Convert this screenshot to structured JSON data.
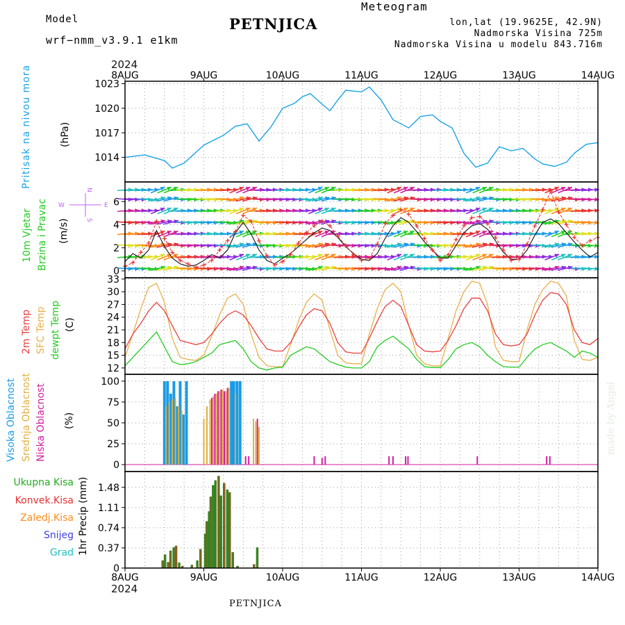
{
  "header": {
    "model_label": "Model",
    "model_name": "wrf−nmm_v3.9.1  e1km",
    "station": "PETNJICA",
    "meteogram": "Meteogram",
    "lonlat": "lon,lat (19.9625E, 42.9N)",
    "elevation": "Nadmorska Visina 725m",
    "model_elevation": "Nadmorska Visina u modelu 843.716m",
    "year": "2024",
    "watermark": "made by Angel"
  },
  "colors": {
    "pressure": "#1aa3e6",
    "temp2m": "#e84040",
    "sfc": "#e6b04a",
    "dew": "#22cc22",
    "high_cloud": "#1a9be6",
    "mid_cloud": "#e0b040",
    "low_cloud": "#d01e9c",
    "precip_total": "#228b22",
    "precip_conv": "#e83030",
    "precip_frz": "#ff8c1a",
    "snow": "#4040e0",
    "grad": "#20c0c0",
    "wind_label": "#22cc22",
    "compass": "#c060f0",
    "header": "#b050d0",
    "meteogram": "#e6b04a"
  },
  "chart_data": [
    {
      "type": "line",
      "title": "Pritisak na nivou mora",
      "ylabel": "(hPa)",
      "x_ticks": [
        "8AUG",
        "9AUG",
        "10AUG",
        "11AUG",
        "12AUG",
        "13AUG",
        "14AUG"
      ],
      "ylim": [
        1011,
        1023.3
      ],
      "y_ticks": [
        1014,
        1017,
        1020,
        1023
      ],
      "x_days": [
        0,
        0.25,
        0.5,
        0.6,
        0.75,
        1,
        1.25,
        1.4,
        1.55,
        1.7,
        1.85,
        2,
        2.15,
        2.25,
        2.35,
        2.5,
        2.6,
        2.7,
        2.8,
        3,
        3.1,
        3.25,
        3.4,
        3.6,
        3.75,
        3.9,
        4,
        4.15,
        4.3,
        4.45,
        4.6,
        4.75,
        4.9,
        5.05,
        5.2,
        5.3,
        5.45,
        5.6,
        5.7,
        5.85,
        6
      ],
      "series": [
        {
          "values": [
            1014,
            1014.3,
            1013.6,
            1012.7,
            1013.3,
            1015.5,
            1016.7,
            1017.8,
            1018.1,
            1016,
            1017.7,
            1020,
            1020.6,
            1021.4,
            1021.8,
            1020.5,
            1019.7,
            1021,
            1022.2,
            1022,
            1022.6,
            1021,
            1018.6,
            1017.6,
            1019,
            1019.2,
            1018.4,
            1017.6,
            1014.5,
            1012.8,
            1013.3,
            1015.3,
            1014.8,
            1015.1,
            1013.8,
            1013.2,
            1012.9,
            1013.4,
            1014.5,
            1015.6,
            1015.8
          ]
        }
      ]
    },
    {
      "type": "line",
      "title": "10m Vjetar Brzina i Pravac",
      "ylabel": "(m/s)",
      "ylim": [
        -0.6,
        7.7
      ],
      "y_ticks": [
        0,
        2,
        4,
        6
      ],
      "compass": {
        "north": "N",
        "south": "S",
        "east": "E",
        "west": "W"
      },
      "x_days": [
        0,
        0.1,
        0.2,
        0.3,
        0.4,
        0.5,
        0.6,
        0.7,
        0.8,
        0.9,
        1,
        1.1,
        1.2,
        1.3,
        1.4,
        1.5,
        1.6,
        1.7,
        1.8,
        1.9,
        2,
        2.1,
        2.2,
        2.3,
        2.4,
        2.5,
        2.6,
        2.7,
        2.8,
        2.9,
        3,
        3.1,
        3.2,
        3.3,
        3.4,
        3.5,
        3.6,
        3.7,
        3.8,
        3.9,
        4,
        4.1,
        4.2,
        4.3,
        4.4,
        4.5,
        4.6,
        4.7,
        4.8,
        4.9,
        5,
        5.1,
        5.2,
        5.3,
        5.4,
        5.5,
        5.6,
        5.7,
        5.8,
        5.9,
        6
      ],
      "series": [
        {
          "values": [
            0.8,
            1.5,
            1.1,
            1.8,
            3.5,
            2.1,
            1.1,
            0.6,
            0.4,
            0.5,
            0.9,
            1.4,
            1.1,
            1.8,
            3.3,
            4.2,
            3.2,
            1.8,
            0.9,
            0.6,
            1.1,
            1.5,
            2.1,
            2.7,
            3.3,
            3.7,
            3.5,
            2.9,
            2.1,
            1.5,
            1.0,
            0.9,
            1.5,
            2.8,
            3.9,
            4.6,
            4.2,
            3.4,
            2.5,
            1.8,
            1.1,
            1.1,
            2.2,
            3.3,
            3.9,
            4.1,
            3.6,
            2.6,
            1.6,
            1.0,
            1.0,
            1.8,
            3.1,
            4.2,
            4.5,
            4.1,
            3.3,
            2.5,
            1.8,
            1.2,
            1.6
          ]
        },
        {
          "values": [
            0.4,
            0.7,
            1.6,
            2.4,
            4.3,
            2.8,
            1.6,
            0.9,
            0.6,
            0.3,
            0.5,
            0.9,
            1.8,
            2.6,
            3.4,
            4.8,
            4.3,
            2.6,
            1.3,
            0.5,
            0.8,
            1.4,
            2.4,
            3.3,
            3.9,
            4.3,
            3.9,
            3.0,
            2.2,
            1.4,
            0.9,
            1.1,
            2.3,
            4.1,
            4.8,
            5.3,
            4.9,
            3.9,
            2.8,
            1.8,
            0.9,
            1.4,
            2.7,
            3.9,
            4.6,
            4.7,
            4.1,
            2.9,
            1.8,
            0.9,
            1.0,
            2.3,
            3.9,
            5.3,
            6.9,
            5.1,
            4.0,
            2.9,
            2.2,
            2.6,
            2.9
          ]
        }
      ]
    },
    {
      "type": "line",
      "title": "2m Temp / SFC Temp / dewpt Temp",
      "ylabel": "(C)",
      "ylim": [
        10.5,
        33.3
      ],
      "y_ticks": [
        12,
        15,
        18,
        21,
        24,
        27,
        30,
        33
      ],
      "x_days": [
        0,
        0.1,
        0.2,
        0.3,
        0.4,
        0.5,
        0.6,
        0.7,
        0.8,
        0.9,
        1,
        1.1,
        1.2,
        1.3,
        1.4,
        1.5,
        1.6,
        1.7,
        1.8,
        1.9,
        2,
        2.1,
        2.2,
        2.3,
        2.4,
        2.5,
        2.6,
        2.7,
        2.8,
        2.9,
        3,
        3.1,
        3.2,
        3.3,
        3.4,
        3.5,
        3.6,
        3.7,
        3.8,
        3.9,
        4,
        4.1,
        4.2,
        4.3,
        4.4,
        4.5,
        4.6,
        4.7,
        4.8,
        4.9,
        5,
        5.1,
        5.2,
        5.3,
        5.4,
        5.5,
        5.6,
        5.7,
        5.8,
        5.9,
        6
      ],
      "series": [
        {
          "name": "2m Temp",
          "values": [
            16.5,
            20,
            22.5,
            25.5,
            27.5,
            25.5,
            22,
            18.5,
            18,
            17.5,
            18,
            20,
            22.5,
            24.5,
            25.5,
            24.5,
            22,
            19,
            16.5,
            16,
            16,
            18,
            21.5,
            24.5,
            26,
            25.5,
            22.5,
            18,
            15.8,
            15.5,
            15.5,
            19,
            23,
            26.5,
            28,
            26.5,
            22,
            17.5,
            16,
            15.8,
            16,
            18.5,
            22,
            26,
            28.5,
            28.5,
            25.5,
            20,
            17.5,
            17.2,
            17.5,
            20,
            24.5,
            28,
            29.8,
            29.5,
            27,
            21,
            18,
            17.5,
            19
          ]
        },
        {
          "name": "SFC Temp",
          "values": [
            14.5,
            20,
            26,
            31,
            32,
            27.5,
            19,
            14.5,
            14,
            13.8,
            15,
            19.5,
            24.5,
            28.5,
            29.5,
            27,
            20,
            14.5,
            12.5,
            12.3,
            12.3,
            17.5,
            23,
            27.5,
            29.5,
            28,
            21,
            15,
            13.2,
            13,
            13,
            20,
            26,
            30.5,
            32,
            30,
            22,
            15,
            13,
            12.5,
            12.5,
            19,
            25.5,
            30,
            32.5,
            32,
            27,
            17,
            13.8,
            13.5,
            13.5,
            21,
            27,
            30.5,
            32.5,
            32,
            29,
            18.5,
            14,
            13.8,
            14.5
          ]
        },
        {
          "name": "dewpt Temp",
          "values": [
            12.5,
            14.5,
            16.5,
            18.5,
            20.5,
            17,
            13.5,
            12.8,
            13,
            13.5,
            14.5,
            15.5,
            17.5,
            18,
            18.5,
            16.5,
            13.5,
            12,
            11.5,
            12,
            12.2,
            15,
            16,
            17,
            16.5,
            15,
            13.5,
            12.8,
            12.2,
            12,
            12,
            13.5,
            17,
            18.5,
            19.5,
            18,
            16.5,
            14,
            12.3,
            12.1,
            12.1,
            14,
            16.5,
            17.5,
            18,
            17,
            15,
            13.5,
            12.3,
            12.2,
            12.2,
            14.5,
            16.5,
            17.5,
            18,
            17,
            16,
            14.5,
            16,
            15.5,
            14.5
          ]
        }
      ]
    },
    {
      "type": "bar",
      "title": "Visoka / Srednja / Niska Oblacnost",
      "ylabel": "(%)",
      "ylim": [
        -8.3,
        108.2
      ],
      "y_ticks": [
        0,
        25,
        50,
        75,
        100
      ],
      "series": [
        {
          "name": "Visoka Oblacnost",
          "x_days": [
            0.5,
            0.54,
            0.58,
            0.62,
            0.66,
            0.7,
            0.74,
            0.78,
            1.35,
            1.38,
            1.42,
            1.46
          ],
          "values": [
            100,
            100,
            85,
            100,
            70,
            100,
            60,
            100,
            100,
            100,
            100,
            100
          ]
        },
        {
          "name": "Srednja Oblacnost",
          "x_days": [
            0.52,
            0.56,
            0.6,
            0.64,
            0.68,
            0.72,
            1,
            1.04,
            1.08,
            1.12,
            1.16,
            1.2,
            1.24,
            1.28,
            1.32,
            1.4,
            1.63,
            1.66,
            1.7
          ],
          "values": [
            70,
            75,
            78,
            80,
            70,
            65,
            55,
            70,
            78,
            82,
            85,
            88,
            90,
            88,
            92,
            85,
            55,
            52,
            45
          ]
        },
        {
          "name": "Niska Oblacnost",
          "x_days": [
            1.1,
            1.14,
            1.18,
            1.22,
            1.26,
            1.3,
            1.53,
            1.57,
            1.68,
            2.4,
            2.5,
            2.54,
            3.35,
            3.4,
            3.56,
            3.59,
            4.47,
            5.35,
            5.39
          ],
          "values": [
            80,
            85,
            88,
            90,
            88,
            92,
            10,
            10,
            55,
            10,
            8,
            10,
            10,
            10,
            10,
            10,
            10,
            10,
            10
          ]
        }
      ]
    },
    {
      "type": "bar",
      "title": "1hr Precip",
      "ylabel": "(mm)",
      "ylim": [
        0,
        1.77
      ],
      "y_ticks": [
        0,
        0.37,
        0.74,
        1.11,
        1.48
      ],
      "y_tick_labels": [
        "0",
        "0.37",
        "0.74",
        "1.11",
        "1.48"
      ],
      "legend": [
        "Ukupna  Kisa",
        "Konvek.Kisa",
        "Zaledj.Kisa",
        "Snijeg",
        "Grad"
      ],
      "x_days": [
        0.48,
        0.51,
        0.55,
        0.58,
        0.62,
        0.65,
        0.69,
        0.73,
        0.85,
        0.92,
        0.96,
        1.02,
        1.04,
        1.07,
        1.09,
        1.12,
        1.15,
        1.19,
        1.22,
        1.26,
        1.3,
        1.33,
        1.37,
        1.43,
        1.64,
        1.68
      ],
      "values": [
        0.14,
        0.25,
        0.11,
        0.32,
        0.38,
        0.41,
        0.1,
        0.04,
        0.06,
        0.14,
        0.35,
        0.63,
        0.86,
        1.04,
        1.31,
        1.52,
        1.61,
        1.69,
        1.33,
        1.56,
        1.44,
        1.39,
        0.29,
        0.04,
        0.07,
        0.38
      ]
    }
  ]
}
